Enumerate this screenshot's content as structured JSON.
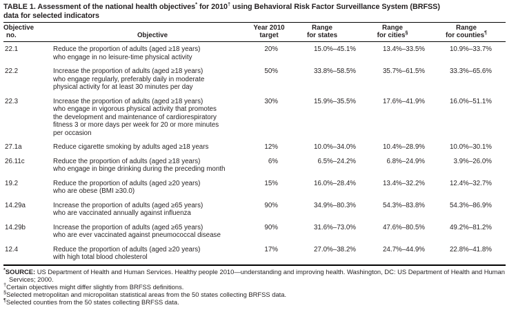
{
  "title": {
    "part1": "TABLE 1. Assessment of the national health objectives",
    "sup1": "*",
    "part2": " for 2010",
    "sup2": "†",
    "part3": " using Behavioral Risk Factor Surveillance System (BRFSS)",
    "part4": "data for selected indicators"
  },
  "header": {
    "col1_line1": "Objective",
    "col1_line2": "no.",
    "col2": "Objective",
    "col3_line1": "Year 2010",
    "col3_line2": "target",
    "col4_line1": "Range",
    "col4_line2": "for states",
    "col5_line1": "Range",
    "col5_line2": "for cities",
    "col5_sup": "§",
    "col6_line1": "Range",
    "col6_line2": "for counties",
    "col6_sup": "¶"
  },
  "rows": [
    {
      "no": "22.1",
      "objective": "Reduce the proportion of adults (aged ≥18 years)\nwho engage in no leisure-time physical activity",
      "target": "20%",
      "states": "15.0%–45.1%",
      "cities": "13.4%–33.5%",
      "counties": "10.9%–33.7%"
    },
    {
      "no": "22.2",
      "objective": "Increase the proportion of adults (aged ≥18 years)\nwho engage regularly, preferably daily in moderate\nphysical activity for at least 30 minutes per day",
      "target": "50%",
      "states": "33.8%–58.5%",
      "cities": "35.7%–61.5%",
      "counties": "33.3%–65.6%"
    },
    {
      "no": "22.3",
      "objective": "Increase the proportion of adults (aged ≥18 years)\nwho engage in vigorous physical activity that promotes\nthe development and maintenance of cardiorespiratory\nfitness 3 or more days per week for 20 or more minutes\nper occasion",
      "target": "30%",
      "states": "15.9%–35.5%",
      "cities": "17.6%–41.9%",
      "counties": "16.0%–51.1%"
    },
    {
      "no": "27.1a",
      "objective": "Reduce cigarette smoking by adults aged ≥18 years",
      "target": "12%",
      "states": "10.0%–34.0%",
      "cities": "10.4%–28.9%",
      "counties": "10.0%–30.1%"
    },
    {
      "no": "26.11c",
      "objective": "Reduce the proportion of adults (aged ≥18 years)\nwho engage in binge drinking during the preceding month",
      "target": "6%",
      "states": "6.5%–24.2%",
      "cities": "6.8%–24.9%",
      "counties": "3.9%–26.0%"
    },
    {
      "no": "19.2",
      "objective": "Reduce the proportion of adults (aged ≥20 years)\nwho are obese (BMI ≥30.0)",
      "target": "15%",
      "states": "16.0%–28.4%",
      "cities": "13.4%–32.2%",
      "counties": "12.4%–32.7%"
    },
    {
      "no": "14.29a",
      "objective": "Increase the proportion of adults (aged ≥65 years)\nwho are vaccinated annually against influenza",
      "target": "90%",
      "states": "34.9%–80.3%",
      "cities": "54.3%–83.8%",
      "counties": "54.3%–86.9%"
    },
    {
      "no": "14.29b",
      "objective": "Increase the proportion of adults (aged ≥65 years)\nwho are ever vaccinated against pneumococcal disease",
      "target": "90%",
      "states": "31.6%–73.0%",
      "cities": "47.6%–80.5%",
      "counties": "49.2%–81.2%"
    },
    {
      "no": "12.4",
      "objective": "Reduce the proportion of adults (aged ≥20 years)\nwith high total blood cholesterol",
      "target": "17%",
      "states": "27.0%–38.2%",
      "cities": "24.7%–44.9%",
      "counties": "22.8%–41.8%"
    }
  ],
  "footnotes": [
    {
      "marker": "*",
      "bold_label": "SOURCE:",
      "text": " US Department of Health and Human Services. Healthy people 2010—understanding and improving health. Washington, DC: US Department of Health and Human Services; 2000."
    },
    {
      "marker": "†",
      "bold_label": "",
      "text": "Certain objectives might differ slightly from BRFSS definitions."
    },
    {
      "marker": "§",
      "bold_label": "",
      "text": "Selected metropolitan and micropolitan statistical areas from the 50 states collecting BRFSS data."
    },
    {
      "marker": "¶",
      "bold_label": "",
      "text": "Selected counties from the 50 states collecting BRFSS data."
    }
  ]
}
